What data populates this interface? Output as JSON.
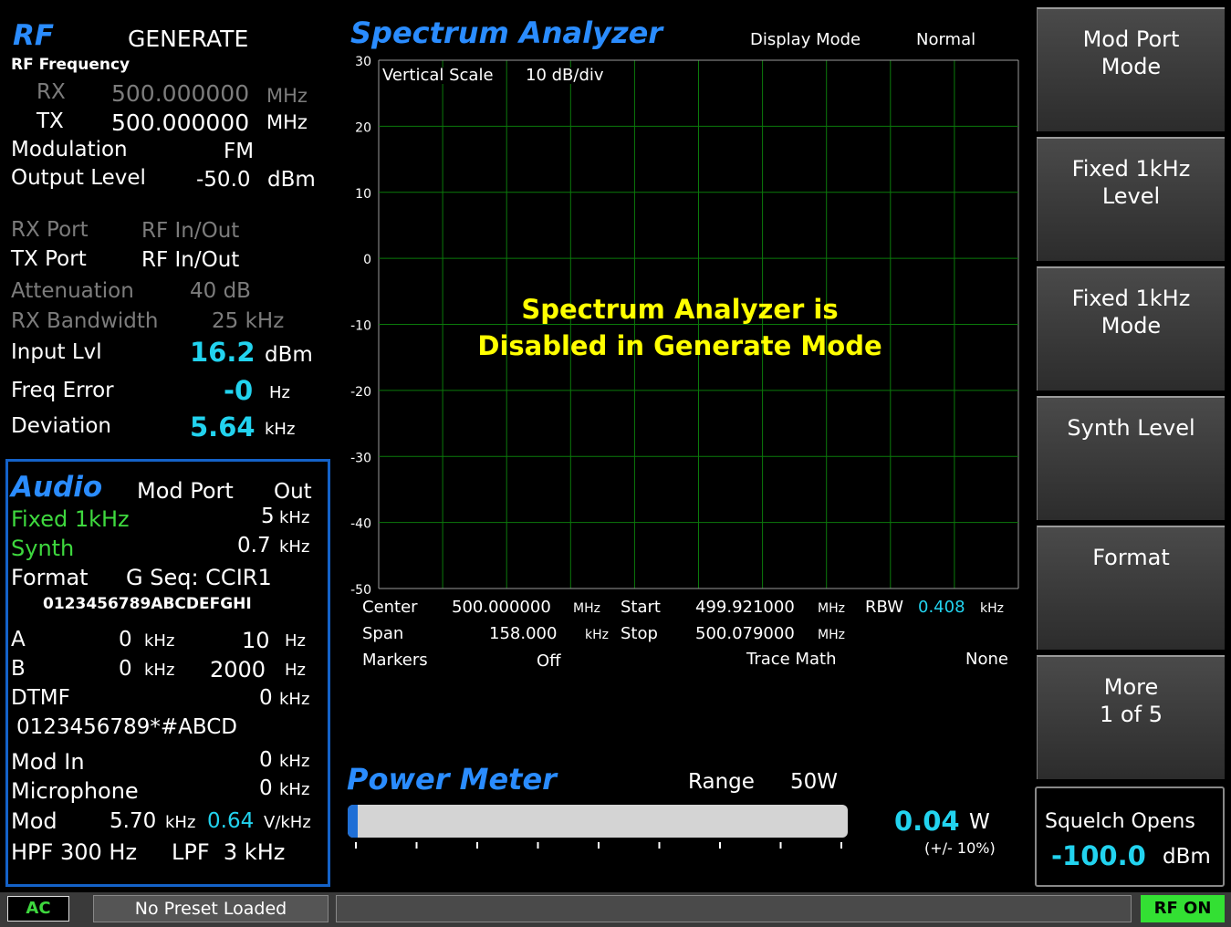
{
  "rf": {
    "title": "RF",
    "mode": "GENERATE",
    "frequency_label": "RF Frequency",
    "rx": {
      "label": "RX",
      "value": "500.000000",
      "unit": "MHz"
    },
    "tx": {
      "label": "TX",
      "value": "500.000000",
      "unit": "MHz"
    },
    "modulation": {
      "label": "Modulation",
      "value": "FM"
    },
    "output_level": {
      "label": "Output Level",
      "value": "-50.0",
      "unit": "dBm"
    },
    "rx_port": {
      "label": "RX Port",
      "value": "RF In/Out"
    },
    "tx_port": {
      "label": "TX Port",
      "value": "RF In/Out"
    },
    "attenuation": {
      "label": "Attenuation",
      "value": "40 dB"
    },
    "rx_bandwidth": {
      "label": "RX Bandwidth",
      "value": "25 kHz"
    },
    "input_lvl": {
      "label": "Input Lvl",
      "value": "16.2",
      "unit": "dBm"
    },
    "freq_error": {
      "label": "Freq Error",
      "value": "-0",
      "unit": "Hz"
    },
    "deviation": {
      "label": "Deviation",
      "value": "5.64",
      "unit": "kHz"
    }
  },
  "audio": {
    "title": "Audio",
    "mod_port_label": "Mod Port",
    "mod_port": "Out",
    "fixed": {
      "label": "Fixed 1kHz",
      "value": "5",
      "unit": "kHz"
    },
    "synth": {
      "label": "Synth",
      "value": "0.7",
      "unit": "kHz"
    },
    "format": {
      "label": "Format",
      "value": "G Seq: CCIR1"
    },
    "sequence": "0123456789ABCDEFGHI",
    "a": {
      "label": "A",
      "value": "0",
      "unit": "kHz",
      "freq": "10",
      "freq_unit": "Hz"
    },
    "b": {
      "label": "B",
      "value": "0",
      "unit": "kHz",
      "freq": "2000",
      "freq_unit": "Hz"
    },
    "dtmf": {
      "label": "DTMF",
      "value": "0",
      "unit": "kHz"
    },
    "dtmf_digits": "0123456789*#ABCD",
    "mod_in": {
      "label": "Mod In",
      "value": "0",
      "unit": "kHz"
    },
    "microphone": {
      "label": "Microphone",
      "value": "0",
      "unit": "kHz"
    },
    "mod": {
      "label": "Mod",
      "value": "5.70",
      "unit": "kHz",
      "sens": "0.64",
      "sens_unit": "V/kHz"
    },
    "hpf": "HPF 300 Hz",
    "lpf": "LPF  3 kHz"
  },
  "spectrum": {
    "title": "Spectrum Analyzer",
    "display_mode_label": "Display Mode",
    "display_mode": "Normal",
    "vertical_scale_label": "Vertical Scale",
    "vertical_scale": "10 dB/div",
    "ylim": [
      -50,
      30
    ],
    "yticks": [
      30,
      20,
      10,
      0,
      -10,
      -20,
      -30,
      -40,
      -50
    ],
    "message": [
      "Spectrum Analyzer is",
      "Disabled in Generate Mode"
    ],
    "center": {
      "label": "Center",
      "value": "500.000000",
      "unit": "MHz"
    },
    "start": {
      "label": "Start",
      "value": "499.921000",
      "unit": "MHz"
    },
    "rbw": {
      "label": "RBW",
      "value": "0.408",
      "unit": "kHz"
    },
    "span": {
      "label": "Span",
      "value": "158.000",
      "unit": "kHz"
    },
    "stop": {
      "label": "Stop",
      "value": "500.079000",
      "unit": "MHz"
    },
    "markers": {
      "label": "Markers",
      "value": "Off"
    },
    "trace_math": {
      "label": "Trace Math",
      "value": "None"
    }
  },
  "power_meter": {
    "title": "Power Meter",
    "range_label": "Range",
    "range": "50W",
    "value": "0.04",
    "unit": "W",
    "tolerance": "(+/- 10%)"
  },
  "softkeys": [
    [
      "Mod Port",
      "Mode"
    ],
    [
      "Fixed 1kHz",
      "Level"
    ],
    [
      "Fixed 1kHz",
      "Mode"
    ],
    [
      "Synth Level"
    ],
    [
      "Format"
    ],
    [
      "More",
      "1 of 5"
    ]
  ],
  "squelch": {
    "label": "Squelch Opens",
    "value": "-100.0",
    "unit": "dBm"
  },
  "status": {
    "ac": "AC",
    "preset": "No Preset Loaded",
    "rf_on": "RF ON"
  }
}
